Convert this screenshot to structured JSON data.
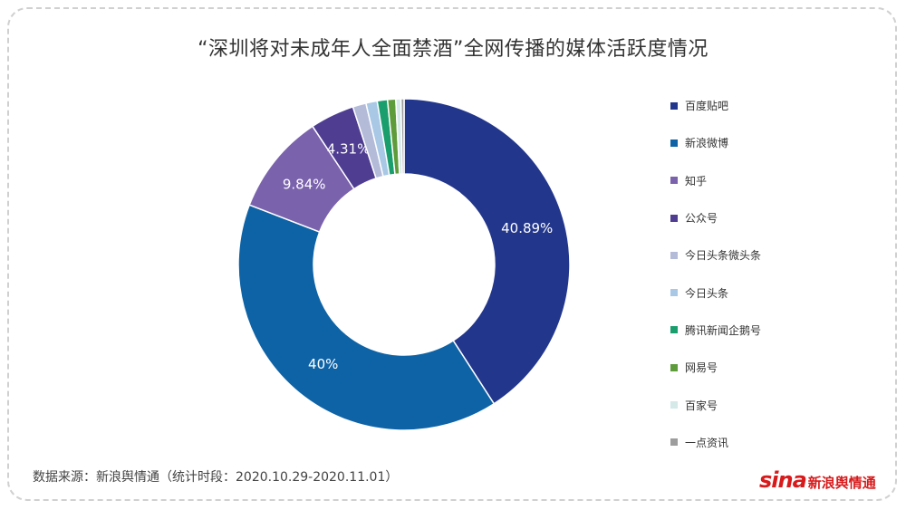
{
  "title": "“深圳将对未成年人全面禁酒”全网传播的媒体活跃度情况",
  "source_text": "数据来源：新浪舆情通（统计时段：2020.10.29-2020.11.01）",
  "logo": {
    "sina": "sina",
    "cn": "新浪舆情通"
  },
  "chart_data": {
    "type": "pie",
    "title": "“深圳将对未成年人全面禁酒”全网传播的媒体活跃度情况",
    "legend_position": "right",
    "donut": true,
    "slices": [
      {
        "name": "百度贴吧",
        "value": 40.89,
        "label": "40.89%",
        "color": "#22368c"
      },
      {
        "name": "新浪微博",
        "value": 40.0,
        "label": "40%",
        "color": "#0e63a6"
      },
      {
        "name": "知乎",
        "value": 9.84,
        "label": "9.84%",
        "color": "#7b62ad"
      },
      {
        "name": "公众号",
        "value": 4.31,
        "label": "4.31%",
        "color": "#4f3d92"
      },
      {
        "name": "今日头条微头条",
        "value": 1.3,
        "label": "",
        "color": "#b3bbd9"
      },
      {
        "name": "今日头条",
        "value": 1.1,
        "label": "",
        "color": "#a8c8e6"
      },
      {
        "name": "腾讯新闻企鹅号",
        "value": 1.0,
        "label": "",
        "color": "#1a9e6e"
      },
      {
        "name": "网易号",
        "value": 0.8,
        "label": "",
        "color": "#5e9b3a"
      },
      {
        "name": "百家号",
        "value": 0.5,
        "label": "",
        "color": "#d4e9e8"
      },
      {
        "name": "一点资讯",
        "value": 0.3,
        "label": "",
        "color": "#9d9d9d"
      }
    ]
  }
}
